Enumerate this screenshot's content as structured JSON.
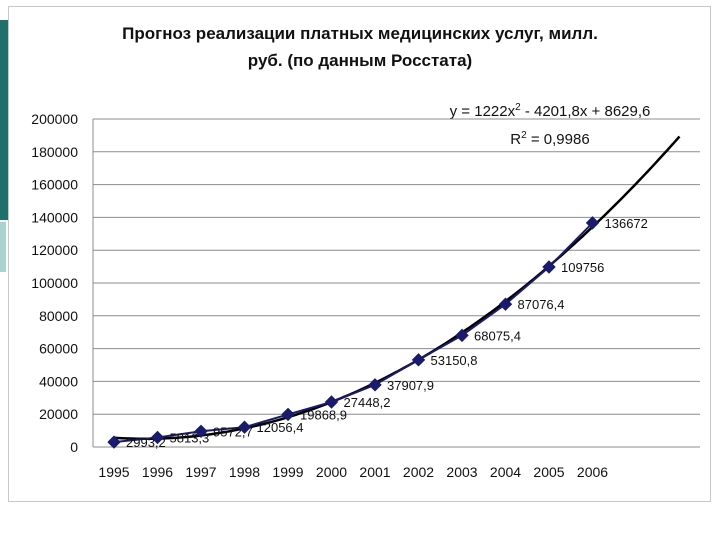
{
  "slide": {
    "accent_color": "#1f6f6b",
    "accent_light": "#a8d3cf"
  },
  "chart_data": {
    "type": "line",
    "title": "Прогноз реализации платных медицинских услуг, милл.\nруб. (по данным Росстата)",
    "categories": [
      "1995",
      "1996",
      "1997",
      "1998",
      "1999",
      "2000",
      "2001",
      "2002",
      "2003",
      "2004",
      "2005",
      "2006"
    ],
    "series": [
      {
        "values": [
          2993.2,
          5813.3,
          9572.7,
          12056.4,
          19868.9,
          27448.2,
          37907.9,
          53150.8,
          68075.4,
          87076.4,
          109756,
          136672
        ],
        "labels": [
          "2993,2",
          "5813,3",
          "9572,7",
          "12056,4",
          "19868,9",
          "27448,2",
          "37907,9",
          "53150,8",
          "68075,4",
          "87076,4",
          "109756",
          "136672"
        ],
        "color": "#1a1a6e",
        "marker": "diamond"
      }
    ],
    "trendline": {
      "type": "polynomial",
      "order": 2,
      "coefficients": [
        1222,
        -4201.8,
        8629.6
      ],
      "equation_prefix": "y = 1222x",
      "equation_suffix": " - 4201,8x + 8629,6",
      "r2_prefix": "R",
      "r2_suffix": " = 0,9986",
      "extends_to_x": 14,
      "color": "#000000"
    },
    "y_ticks": [
      "0",
      "20000",
      "40000",
      "60000",
      "80000",
      "100000",
      "120000",
      "140000",
      "160000",
      "180000",
      "200000"
    ],
    "ylim": [
      0,
      200000
    ],
    "grid": true,
    "legend": "none"
  }
}
